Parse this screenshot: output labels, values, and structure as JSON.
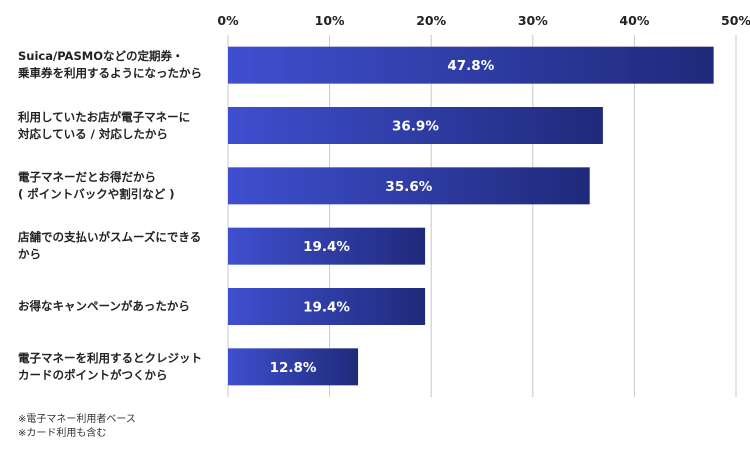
{
  "chart_data": {
    "type": "bar",
    "orientation": "horizontal",
    "title": "",
    "xlabel": "",
    "ylabel": "",
    "xlim": [
      0,
      50
    ],
    "ticks": [
      0,
      10,
      20,
      30,
      40,
      50
    ],
    "tick_labels": [
      "0%",
      "10%",
      "20%",
      "30%",
      "40%",
      "50%"
    ],
    "grid": true,
    "categories": [
      "Suica/PASMOなどの定期券・\n乗車券を利用するようになったから",
      "利用していたお店が電子マネーに\n対応している / 対応したから",
      "電子マネーだとお得だから\n( ポイントバックや割引など )",
      "店舗での支払いがスムーズにできる\nから",
      "お得なキャンペーンがあったから",
      "電子マネーを利用するとクレジット\nカードのポイントがつくから"
    ],
    "values": [
      47.8,
      36.9,
      35.6,
      19.4,
      19.4,
      12.8
    ],
    "value_labels": [
      "47.8%",
      "36.9%",
      "35.6%",
      "19.4%",
      "19.4%",
      "12.8%"
    ],
    "colors": {
      "bar_start": "#3f4fcf",
      "bar_end": "#1f2a7a",
      "grid": "#c8c8c8",
      "value_text": "#ffffff"
    }
  },
  "notes": [
    "※電子マネー利用者ベース",
    "※カード利用も含む"
  ]
}
